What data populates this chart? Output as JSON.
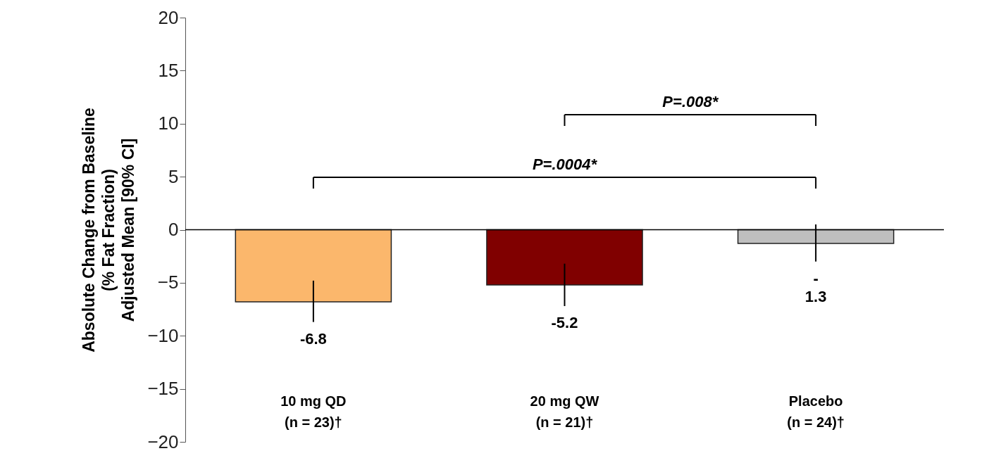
{
  "chart_data": {
    "type": "bar",
    "ylabel": "Absolute Change from Baseline\n(% Fat Fraction)\nAdjusted Mean [90% CI]",
    "categories": [
      "10 mg QD\n(n = 23)†",
      "20 mg QW\n(n = 21)†",
      "Placebo\n(n = 24)†"
    ],
    "values": [
      -6.8,
      -5.2,
      -1.3
    ],
    "colors": [
      "#fbb76c",
      "#800000",
      "#bfbfbf"
    ],
    "errors": [
      [
        -8.7,
        -4.8
      ],
      [
        -7.2,
        -3.2
      ],
      [
        -3.0,
        0.5
      ]
    ],
    "value_labels": [
      "-6.8",
      "-5.2",
      "-\n1.3"
    ],
    "ylim": [
      -20,
      20
    ],
    "yticks": [
      -20,
      -15,
      -10,
      -5,
      0,
      5,
      10,
      15,
      20
    ],
    "ref_lines": [
      {
        "axis": "y",
        "value": 0
      }
    ],
    "annotations": [
      "P=.008*",
      "P=.0004*"
    ]
  }
}
